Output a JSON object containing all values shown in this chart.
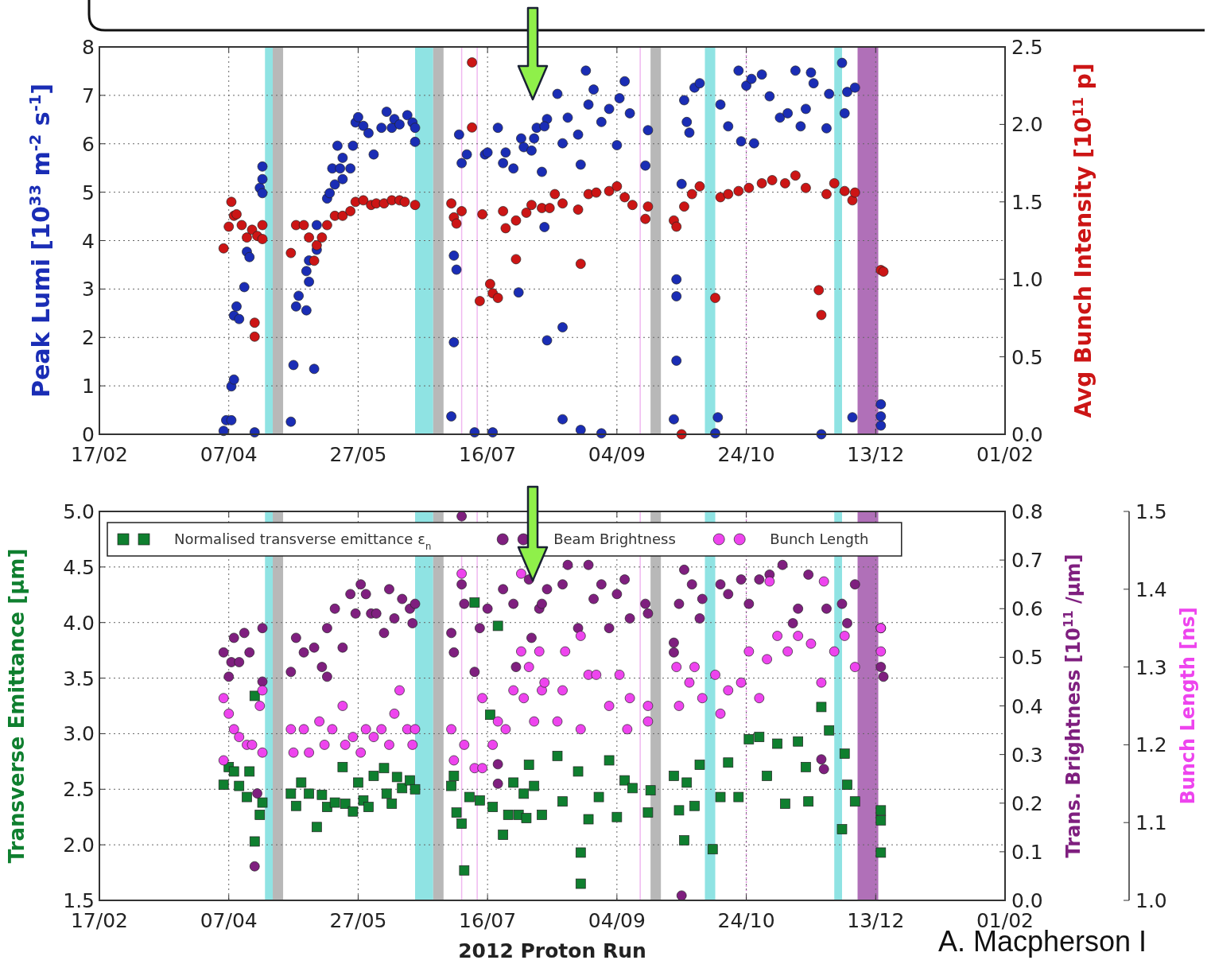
{
  "chart_data": [
    {
      "type": "scatter",
      "ylabel": "Peak Lumi [10$^{33}$ m$^{-2}$ s$^{-1}$]",
      "y2label": "Avg Bunch Intensity [10$^{11}$ p]",
      "xlim": [
        "2012-02-17",
        "2013-02-01"
      ],
      "xticks": [
        {
          "value": "2012-02-17",
          "label": "17/02"
        },
        {
          "value": "2012-04-07",
          "label": "07/04"
        },
        {
          "value": "2012-05-27",
          "label": "27/05"
        },
        {
          "value": "2012-07-16",
          "label": "16/07"
        },
        {
          "value": "2012-09-04",
          "label": "04/09"
        },
        {
          "value": "2012-10-24",
          "label": "24/10"
        },
        {
          "value": "2012-12-13",
          "label": "13/12"
        },
        {
          "value": "2013-02-01",
          "label": "01/02"
        }
      ],
      "ylim": [
        0,
        8
      ],
      "yticks": [
        0,
        1,
        2,
        3,
        4,
        5,
        6,
        7,
        8
      ],
      "y2lim": [
        0,
        2.5
      ],
      "y2ticks": [
        {
          "value": 0,
          "label": "0.0"
        },
        {
          "value": 0.5,
          "label": "0.5"
        },
        {
          "value": 1,
          "label": "1.0"
        },
        {
          "value": 1.5,
          "label": "1.5"
        },
        {
          "value": 2,
          "label": "2.0"
        },
        {
          "value": 2.5,
          "label": "2.5"
        }
      ],
      "grid": true,
      "legend": false,
      "bands": [
        {
          "axis": "x",
          "from": "2012-04-21",
          "to": "2012-04-24",
          "color": "#8fe3e3"
        },
        {
          "axis": "x",
          "from": "2012-04-24",
          "to": "2012-04-28",
          "color": "#b8b8b8"
        },
        {
          "axis": "x",
          "from": "2012-06-18",
          "to": "2012-06-25",
          "color": "#8fe3e3"
        },
        {
          "axis": "x",
          "from": "2012-06-25",
          "to": "2012-06-29",
          "color": "#b8b8b8"
        },
        {
          "axis": "x",
          "from": "2012-09-17",
          "to": "2012-09-21",
          "color": "#b8b8b8"
        },
        {
          "axis": "x",
          "from": "2012-10-08",
          "to": "2012-10-12",
          "color": "#8fe3e3"
        },
        {
          "axis": "x",
          "from": "2012-11-27",
          "to": "2012-11-30",
          "color": "#8fe3e3"
        },
        {
          "axis": "x",
          "from": "2012-12-06",
          "to": "2012-12-14",
          "color": "#b070b8"
        }
      ],
      "ref_lines": [
        {
          "axis": "x",
          "value": "2012-07-06",
          "color": "#f0b8f0",
          "line_style": "solid"
        },
        {
          "axis": "x",
          "value": "2012-07-12",
          "color": "#f0b8f0",
          "line_style": "solid"
        },
        {
          "axis": "x",
          "value": "2012-09-13",
          "color": "#f0b8f0",
          "line_style": "solid"
        },
        {
          "axis": "x",
          "value": "2012-10-24",
          "color": "#e090e0",
          "line_style": "dotted"
        }
      ],
      "series": [
        {
          "color": "#1a2db5",
          "marker": "circle",
          "x": [
            "2012-04-05",
            "2012-04-06",
            "2012-04-08",
            "2012-04-08",
            "2012-04-09",
            "2012-04-09",
            "2012-04-10",
            "2012-04-11",
            "2012-04-13",
            "2012-04-14",
            "2012-04-15",
            "2012-04-17",
            "2012-04-19",
            "2012-04-20",
            "2012-04-20",
            "2012-04-20",
            "2012-05-01",
            "2012-05-02",
            "2012-05-03",
            "2012-05-04",
            "2012-05-07",
            "2012-05-07",
            "2012-05-08",
            "2012-05-08",
            "2012-05-10",
            "2012-05-11",
            "2012-05-11",
            "2012-05-15",
            "2012-05-16",
            "2012-05-17",
            "2012-05-18",
            "2012-05-19",
            "2012-05-20",
            "2012-05-21",
            "2012-05-21",
            "2012-05-24",
            "2012-05-25",
            "2012-05-26",
            "2012-05-27",
            "2012-05-29",
            "2012-05-31",
            "2012-06-02",
            "2012-06-05",
            "2012-06-07",
            "2012-06-09",
            "2012-06-10",
            "2012-06-12",
            "2012-06-15",
            "2012-06-17",
            "2012-06-18",
            "2012-06-18",
            "2012-07-02",
            "2012-07-03",
            "2012-07-03",
            "2012-07-04",
            "2012-07-05",
            "2012-07-06",
            "2012-07-08",
            "2012-07-11",
            "2012-07-15",
            "2012-07-16",
            "2012-07-18",
            "2012-07-20",
            "2012-07-22",
            "2012-07-23",
            "2012-07-26",
            "2012-07-28",
            "2012-07-29",
            "2012-07-30",
            "2012-08-02",
            "2012-08-03",
            "2012-08-04",
            "2012-08-06",
            "2012-08-07",
            "2012-08-08",
            "2012-08-08",
            "2012-08-07",
            "2012-08-12",
            "2012-08-14",
            "2012-08-14",
            "2012-08-16",
            "2012-08-20",
            "2012-08-21",
            "2012-08-23",
            "2012-08-24",
            "2012-08-26",
            "2012-08-29",
            "2012-09-01",
            "2012-09-04",
            "2012-09-05",
            "2012-09-07",
            "2012-09-09",
            "2012-08-21",
            "2012-08-14",
            "2012-08-29",
            "2012-09-16",
            "2012-09-15",
            "2012-09-26",
            "2012-09-27",
            "2012-09-27",
            "2012-09-27",
            "2012-09-29",
            "2012-09-30",
            "2012-10-01",
            "2012-10-02",
            "2012-10-04",
            "2012-10-06",
            "2012-10-13",
            "2012-10-12",
            "2012-10-14",
            "2012-10-17",
            "2012-10-21",
            "2012-10-22",
            "2012-10-24",
            "2012-10-26",
            "2012-10-27",
            "2012-10-30",
            "2012-11-02",
            "2012-11-06",
            "2012-11-09",
            "2012-11-12",
            "2012-11-14",
            "2012-11-16",
            "2012-11-18",
            "2012-11-19",
            "2012-11-22",
            "2012-11-24",
            "2012-11-25",
            "2012-11-30",
            "2012-12-01",
            "2012-12-02",
            "2012-12-04",
            "2012-12-05",
            "2012-12-15",
            "2012-12-15",
            "2012-12-15"
          ],
          "values": [
            0.07,
            0.29,
            0.29,
            0.99,
            1.13,
            2.45,
            2.64,
            2.38,
            3.04,
            3.77,
            3.66,
            0.04,
            5.09,
            5.27,
            5.53,
            4.98,
            0.26,
            1.43,
            2.64,
            2.86,
            2.56,
            3.37,
            3.15,
            3.59,
            1.35,
            3.81,
            4.32,
            4.87,
            4.98,
            5.49,
            5.16,
            5.96,
            5.49,
            5.71,
            5.27,
            5.49,
            5.96,
            6.44,
            6.55,
            6.37,
            6.22,
            5.78,
            6.33,
            6.66,
            6.33,
            6.51,
            6.4,
            6.59,
            6.44,
            6.04,
            6.33,
            0.37,
            1.9,
            3.69,
            3.4,
            6.19,
            5.6,
            5.78,
            0.04,
            5.78,
            5.82,
            0.04,
            6.33,
            5.6,
            5.82,
            5.49,
            2.93,
            6.11,
            5.93,
            5.86,
            6.11,
            6.33,
            5.42,
            4.28,
            1.94,
            6.51,
            6.36,
            7.03,
            6.01,
            2.21,
            6.54,
            6.19,
            5.57,
            7.51,
            6.81,
            7.12,
            6.45,
            6.72,
            5.97,
            6.94,
            7.29,
            6.63,
            0.09,
            0.31,
            0.02,
            6.28,
            5.55,
            0.31,
            3.2,
            2.85,
            1.52,
            5.17,
            6.9,
            6.45,
            6.23,
            7.16,
            7.25,
            0.35,
            0.02,
            6.81,
            6.36,
            7.51,
            6.05,
            7.2,
            7.34,
            6.01,
            7.43,
            6.98,
            6.54,
            6.63,
            7.51,
            6.36,
            6.72,
            7.47,
            7.25,
            0,
            6.32,
            7.03,
            7.67,
            6.63,
            7.07,
            0.35,
            7.16,
            0.18,
            0.62,
            0.37
          ]
        },
        {
          "color": "#cc1515",
          "marker": "circle",
          "axis": "y2",
          "x": [
            "2012-04-05",
            "2012-04-07",
            "2012-04-08",
            "2012-04-09",
            "2012-04-10",
            "2012-04-12",
            "2012-04-14",
            "2012-04-16",
            "2012-04-17",
            "2012-04-17",
            "2012-04-18",
            "2012-04-20",
            "2012-04-20",
            "2012-05-01",
            "2012-05-03",
            "2012-05-06",
            "2012-05-08",
            "2012-05-10",
            "2012-05-11",
            "2012-05-13",
            "2012-05-15",
            "2012-05-18",
            "2012-05-21",
            "2012-05-24",
            "2012-05-26",
            "2012-05-29",
            "2012-06-01",
            "2012-06-03",
            "2012-06-06",
            "2012-06-09",
            "2012-06-12",
            "2012-06-14",
            "2012-06-18",
            "2012-07-02",
            "2012-07-03",
            "2012-07-04",
            "2012-07-06",
            "2012-07-10",
            "2012-07-10",
            "2012-07-13",
            "2012-07-14",
            "2012-07-17",
            "2012-07-18",
            "2012-07-20",
            "2012-07-22",
            "2012-07-23",
            "2012-07-27",
            "2012-07-27",
            "2012-07-31",
            "2012-08-02",
            "2012-08-06",
            "2012-08-09",
            "2012-08-11",
            "2012-08-14",
            "2012-08-20",
            "2012-08-21",
            "2012-08-24",
            "2012-08-27",
            "2012-09-01",
            "2012-09-04",
            "2012-09-07",
            "2012-09-10",
            "2012-09-15",
            "2012-09-16",
            "2012-09-26",
            "2012-09-27",
            "2012-09-29",
            "2012-09-30",
            "2012-10-03",
            "2012-10-06",
            "2012-10-12",
            "2012-10-14",
            "2012-10-17",
            "2012-10-21",
            "2012-10-25",
            "2012-10-30",
            "2012-11-03",
            "2012-11-08",
            "2012-11-12",
            "2012-11-16",
            "2012-11-21",
            "2012-11-22",
            "2012-11-24",
            "2012-11-27",
            "2012-12-01",
            "2012-12-04",
            "2012-12-05",
            "2012-12-15",
            "2012-12-16"
          ],
          "values": [
            1.2,
            1.34,
            1.5,
            1.41,
            1.42,
            1.35,
            1.27,
            1.32,
            0.72,
            0.63,
            1.28,
            1.35,
            1.26,
            1.17,
            1.35,
            1.35,
            1.27,
            1.12,
            1.22,
            1.27,
            1.35,
            1.41,
            1.41,
            1.44,
            1.5,
            1.51,
            1.48,
            1.49,
            1.49,
            1.51,
            1.51,
            1.5,
            1.48,
            1.49,
            1.4,
            1.36,
            1.44,
            2.4,
            1.98,
            0.86,
            1.42,
            0.97,
            0.91,
            0.88,
            1.44,
            1.33,
            1.13,
            1.38,
            1.43,
            1.48,
            1.46,
            1.46,
            1.55,
            1.49,
            1.45,
            1.1,
            1.55,
            1.56,
            1.57,
            1.6,
            1.53,
            1.48,
            1.39,
            1.47,
            1.38,
            1.34,
            0,
            1.47,
            1.55,
            1.6,
            0.88,
            1.53,
            1.55,
            1.57,
            1.59,
            1.62,
            1.64,
            1.62,
            1.67,
            1.59,
            0.93,
            0.77,
            1.55,
            1.62,
            1.57,
            1.51,
            1.56,
            1.06,
            1.05
          ]
        }
      ]
    },
    {
      "type": "scatter",
      "xlabel": "2012 Proton Run",
      "ylabel": "Transverse Emittance [μm]",
      "y2label": "Trans. Brightness [10$^{11}$ /μm]",
      "y3label": "Bunch Length [ns]",
      "xlim": [
        "2012-02-17",
        "2013-02-01"
      ],
      "xticks": [
        {
          "value": "2012-02-17",
          "label": "17/02"
        },
        {
          "value": "2012-04-07",
          "label": "07/04"
        },
        {
          "value": "2012-05-27",
          "label": "27/05"
        },
        {
          "value": "2012-07-16",
          "label": "16/07"
        },
        {
          "value": "2012-09-04",
          "label": "04/09"
        },
        {
          "value": "2012-10-24",
          "label": "24/10"
        },
        {
          "value": "2012-12-13",
          "label": "13/12"
        },
        {
          "value": "2013-02-01",
          "label": "01/02"
        }
      ],
      "ylim": [
        1.5,
        5
      ],
      "yticks": [
        1.5,
        {
          "value": 2,
          "label": "2.0"
        },
        2.5,
        {
          "value": 3,
          "label": "3.0"
        },
        3.5,
        {
          "value": 4,
          "label": "4.0"
        },
        4.5,
        {
          "value": 5,
          "label": "5.0"
        }
      ],
      "y2lim": [
        0,
        0.8
      ],
      "y2ticks": [
        {
          "value": 0,
          "label": "0.0"
        },
        0.1,
        0.2,
        0.3,
        0.4,
        0.5,
        0.6,
        0.7,
        0.8
      ],
      "y3lim": [
        1,
        1.5
      ],
      "y3ticks": [
        {
          "value": 1,
          "label": "1.0"
        },
        1.1,
        1.2,
        1.3,
        1.4,
        1.5
      ],
      "grid": true,
      "legend": "top left",
      "annotations": [
        "A. Macpherson I"
      ],
      "bands": [
        {
          "axis": "x",
          "from": "2012-04-21",
          "to": "2012-04-24",
          "color": "#8fe3e3"
        },
        {
          "axis": "x",
          "from": "2012-04-24",
          "to": "2012-04-28",
          "color": "#b8b8b8"
        },
        {
          "axis": "x",
          "from": "2012-06-18",
          "to": "2012-06-25",
          "color": "#8fe3e3"
        },
        {
          "axis": "x",
          "from": "2012-06-25",
          "to": "2012-06-29",
          "color": "#b8b8b8"
        },
        {
          "axis": "x",
          "from": "2012-09-17",
          "to": "2012-09-21",
          "color": "#b8b8b8"
        },
        {
          "axis": "x",
          "from": "2012-10-08",
          "to": "2012-10-12",
          "color": "#8fe3e3"
        },
        {
          "axis": "x",
          "from": "2012-11-27",
          "to": "2012-11-30",
          "color": "#8fe3e3"
        },
        {
          "axis": "x",
          "from": "2012-12-06",
          "to": "2012-12-14",
          "color": "#b070b8"
        }
      ],
      "ref_lines": [
        {
          "axis": "x",
          "value": "2012-07-06",
          "color": "#f0b8f0",
          "line_style": "solid"
        },
        {
          "axis": "x",
          "value": "2012-07-12",
          "color": "#f0b8f0",
          "line_style": "solid"
        },
        {
          "axis": "x",
          "value": "2012-09-13",
          "color": "#f0b8f0",
          "line_style": "solid"
        },
        {
          "axis": "x",
          "value": "2012-10-24",
          "color": "#e090e0",
          "line_style": "dotted"
        }
      ],
      "series": [
        {
          "name": "Normalised transverse emittance ε$_{n}$",
          "color": "#0f7f2f",
          "marker": "square",
          "x": [
            "2012-04-05",
            "2012-04-07",
            "2012-04-09",
            "2012-04-11",
            "2012-04-14",
            "2012-04-15",
            "2012-04-17",
            "2012-04-17",
            "2012-04-19",
            "2012-04-20",
            "2012-05-01",
            "2012-05-03",
            "2012-05-05",
            "2012-05-08",
            "2012-05-11",
            "2012-05-13",
            "2012-05-15",
            "2012-05-18",
            "2012-05-21",
            "2012-05-22",
            "2012-05-25",
            "2012-05-27",
            "2012-05-29",
            "2012-05-31",
            "2012-06-02",
            "2012-06-06",
            "2012-06-07",
            "2012-06-09",
            "2012-06-11",
            "2012-06-13",
            "2012-06-16",
            "2012-06-18",
            "2012-07-02",
            "2012-07-03",
            "2012-07-04",
            "2012-07-06",
            "2012-07-07",
            "2012-07-11",
            "2012-07-09",
            "2012-07-13",
            "2012-07-17",
            "2012-07-18",
            "2012-07-20",
            "2012-07-22",
            "2012-07-24",
            "2012-07-26",
            "2012-07-28",
            "2012-07-30",
            "2012-07-31",
            "2012-08-01",
            "2012-08-03",
            "2012-08-06",
            "2012-08-12",
            "2012-08-14",
            "2012-08-20",
            "2012-08-21",
            "2012-08-21",
            "2012-08-24",
            "2012-08-28",
            "2012-09-01",
            "2012-09-04",
            "2012-09-07",
            "2012-09-10",
            "2012-09-16",
            "2012-09-17",
            "2012-09-26",
            "2012-09-28",
            "2012-09-30",
            "2012-10-01",
            "2012-10-04",
            "2012-10-06",
            "2012-10-11",
            "2012-10-14",
            "2012-10-17",
            "2012-10-21",
            "2012-10-25",
            "2012-10-29",
            "2012-11-01",
            "2012-11-05",
            "2012-11-08",
            "2012-11-13",
            "2012-11-16",
            "2012-11-17",
            "2012-11-22",
            "2012-11-25",
            "2012-11-30",
            "2012-12-01",
            "2012-12-02",
            "2012-12-05",
            "2012-12-15",
            "2012-12-15",
            "2012-12-15"
          ],
          "values": [
            2.54,
            2.7,
            2.66,
            2.53,
            2.43,
            2.66,
            2.03,
            3.34,
            2.27,
            2.38,
            2.46,
            2.35,
            2.56,
            2.46,
            2.16,
            2.45,
            2.34,
            2.38,
            2.7,
            2.37,
            2.3,
            2.56,
            2.4,
            2.34,
            2.62,
            2.69,
            2.46,
            2.37,
            2.61,
            2.51,
            2.58,
            2.5,
            2.53,
            2.62,
            2.29,
            2.19,
            1.77,
            4.18,
            2.43,
            2.4,
            3.17,
            2.34,
            3.97,
            2.09,
            2.27,
            2.56,
            2.27,
            2.46,
            2.24,
            2.72,
            2.53,
            2.27,
            2.8,
            2.39,
            2.66,
            1.93,
            1.65,
            2.23,
            2.43,
            2.76,
            2.25,
            2.58,
            2.51,
            2.29,
            2.49,
            2.62,
            2.31,
            2.04,
            2.56,
            2.35,
            2.72,
            1.96,
            2.43,
            2.74,
            2.43,
            2.95,
            2.97,
            2.62,
            2.91,
            2.37,
            2.93,
            2.7,
            2.39,
            3.24,
            3.03,
            2.14,
            2.82,
            2.54,
            2.39,
            2.31,
            1.93,
            2.22
          ]
        },
        {
          "name": "Beam Brightness",
          "color": "#7f1f7f",
          "marker": "circle",
          "axis": "y2",
          "x": [
            "2012-04-05",
            "2012-04-07",
            "2012-04-08",
            "2012-04-09",
            "2012-04-11",
            "2012-04-13",
            "2012-04-15",
            "2012-04-17",
            "2012-04-18",
            "2012-04-20",
            "2012-04-20",
            "2012-05-01",
            "2012-05-03",
            "2012-05-06",
            "2012-05-10",
            "2012-05-13",
            "2012-05-15",
            "2012-05-15",
            "2012-05-18",
            "2012-05-21",
            "2012-05-24",
            "2012-05-26",
            "2012-05-28",
            "2012-05-30",
            "2012-06-01",
            "2012-06-03",
            "2012-06-06",
            "2012-06-08",
            "2012-06-10",
            "2012-06-13",
            "2012-06-16",
            "2012-06-17",
            "2012-06-18",
            "2012-07-02",
            "2012-07-03",
            "2012-07-06",
            "2012-07-06",
            "2012-07-07",
            "2012-07-11",
            "2012-07-13",
            "2012-07-16",
            "2012-07-20",
            "2012-07-20",
            "2012-07-22",
            "2012-07-26",
            "2012-07-27",
            "2012-08-01",
            "2012-08-02",
            "2012-08-05",
            "2012-08-08",
            "2012-08-06",
            "2012-08-14",
            "2012-08-16",
            "2012-08-20",
            "2012-08-24",
            "2012-08-26",
            "2012-08-29",
            "2012-09-01",
            "2012-09-04",
            "2012-09-07",
            "2012-09-09",
            "2012-09-15",
            "2012-09-16",
            "2012-09-26",
            "2012-09-26",
            "2012-09-29",
            "2012-09-28",
            "2012-09-30",
            "2012-10-03",
            "2012-10-06",
            "2012-10-07",
            "2012-10-14",
            "2012-10-17",
            "2012-10-22",
            "2012-10-25",
            "2012-10-29",
            "2012-11-02",
            "2012-11-07",
            "2012-11-11",
            "2012-11-13",
            "2012-11-17",
            "2012-11-22",
            "2012-11-23",
            "2012-11-24",
            "2012-11-30",
            "2012-12-02",
            "2012-12-05",
            "2012-12-15",
            "2012-12-16",
            "2012-12-15"
          ],
          "values": [
            0.51,
            0.46,
            0.49,
            0.54,
            0.49,
            0.55,
            0.51,
            0.07,
            0.22,
            0.45,
            0.56,
            0.47,
            0.54,
            0.51,
            0.52,
            0.48,
            0.46,
            0.56,
            0.6,
            0.52,
            0.63,
            0.59,
            0.65,
            0.63,
            0.59,
            0.59,
            0.55,
            0.64,
            0.58,
            0.62,
            0.6,
            0.57,
            0.61,
            0.55,
            0.51,
            0.79,
            0.65,
            0.61,
            0.47,
            0.56,
            0.6,
            0.24,
            0.28,
            0.64,
            0.61,
            0.48,
            0.66,
            0.54,
            0.6,
            0.64,
            0.61,
            0.65,
            0.69,
            0.56,
            0.69,
            0.62,
            0.65,
            0.56,
            0.63,
            0.66,
            0.58,
            0.61,
            0.59,
            0.53,
            0.51,
            0.01,
            0.61,
            0.68,
            0.65,
            0.58,
            0.62,
            0.65,
            0.63,
            0.66,
            0.61,
            0.66,
            0.67,
            0.69,
            0.57,
            0.6,
            0.67,
            0.29,
            0.27,
            0.6,
            0.61,
            0.57,
            0.65,
            0.48,
            0.46,
            0.56
          ]
        },
        {
          "name": "Bunch Length",
          "color": "#ee44ee",
          "marker": "circle",
          "axis": "y3",
          "x": [
            "2012-04-05",
            "2012-04-05",
            "2012-04-07",
            "2012-04-09",
            "2012-04-11",
            "2012-04-14",
            "2012-04-16",
            "2012-04-20",
            "2012-04-19",
            "2012-04-20",
            "2012-05-01",
            "2012-05-02",
            "2012-05-06",
            "2012-05-08",
            "2012-05-12",
            "2012-05-14",
            "2012-05-17",
            "2012-05-21",
            "2012-05-22",
            "2012-05-25",
            "2012-05-28",
            "2012-05-30",
            "2012-06-02",
            "2012-06-05",
            "2012-06-08",
            "2012-06-10",
            "2012-06-12",
            "2012-06-15",
            "2012-06-17",
            "2012-06-18",
            "2012-07-02",
            "2012-07-03",
            "2012-07-06",
            "2012-07-07",
            "2012-07-11",
            "2012-07-14",
            "2012-07-14",
            "2012-07-18",
            "2012-07-20",
            "2012-07-23",
            "2012-07-26",
            "2012-07-29",
            "2012-07-29",
            "2012-07-30",
            "2012-08-01",
            "2012-08-03",
            "2012-08-05",
            "2012-08-06",
            "2012-08-07",
            "2012-08-12",
            "2012-08-14",
            "2012-08-15",
            "2012-08-21",
            "2012-08-21",
            "2012-08-24",
            "2012-08-27",
            "2012-09-01",
            "2012-09-05",
            "2012-09-08",
            "2012-09-09",
            "2012-09-16",
            "2012-09-16",
            "2012-09-27",
            "2012-09-28",
            "2012-10-02",
            "2012-10-04",
            "2012-10-07",
            "2012-10-12",
            "2012-10-14",
            "2012-10-17",
            "2012-10-22",
            "2012-10-25",
            "2012-10-29",
            "2012-11-02",
            "2012-11-01",
            "2012-11-05",
            "2012-11-09",
            "2012-11-13",
            "2012-11-18",
            "2012-11-22",
            "2012-11-23",
            "2012-11-27",
            "2012-12-01",
            "2012-12-05",
            "2012-12-15",
            "2012-12-15"
          ],
          "values": [
            1.26,
            1.18,
            1.24,
            1.22,
            1.21,
            1.2,
            1.2,
            1.19,
            1.25,
            1.27,
            1.22,
            1.19,
            1.22,
            1.19,
            1.23,
            1.2,
            1.22,
            1.25,
            1.2,
            1.21,
            1.19,
            1.22,
            1.21,
            1.22,
            1.2,
            1.24,
            1.27,
            1.22,
            1.2,
            1.22,
            1.22,
            1.18,
            1.42,
            1.2,
            1.17,
            1.26,
            1.17,
            1.2,
            1.23,
            1.22,
            1.27,
            1.42,
            1.32,
            1.26,
            1.3,
            1.23,
            1.32,
            1.27,
            1.28,
            1.23,
            1.27,
            1.32,
            1.34,
            1.22,
            1.29,
            1.29,
            1.25,
            1.29,
            1.22,
            1.26,
            1.23,
            1.25,
            1.3,
            1.25,
            1.28,
            1.3,
            1.26,
            1.29,
            1.24,
            1.27,
            1.28,
            1.32,
            1.26,
            1.41,
            1.31,
            1.34,
            1.32,
            1.34,
            1.33,
            1.28,
            1.41,
            1.32,
            1.34,
            1.3,
            1.35,
            1.32
          ]
        }
      ]
    }
  ]
}
